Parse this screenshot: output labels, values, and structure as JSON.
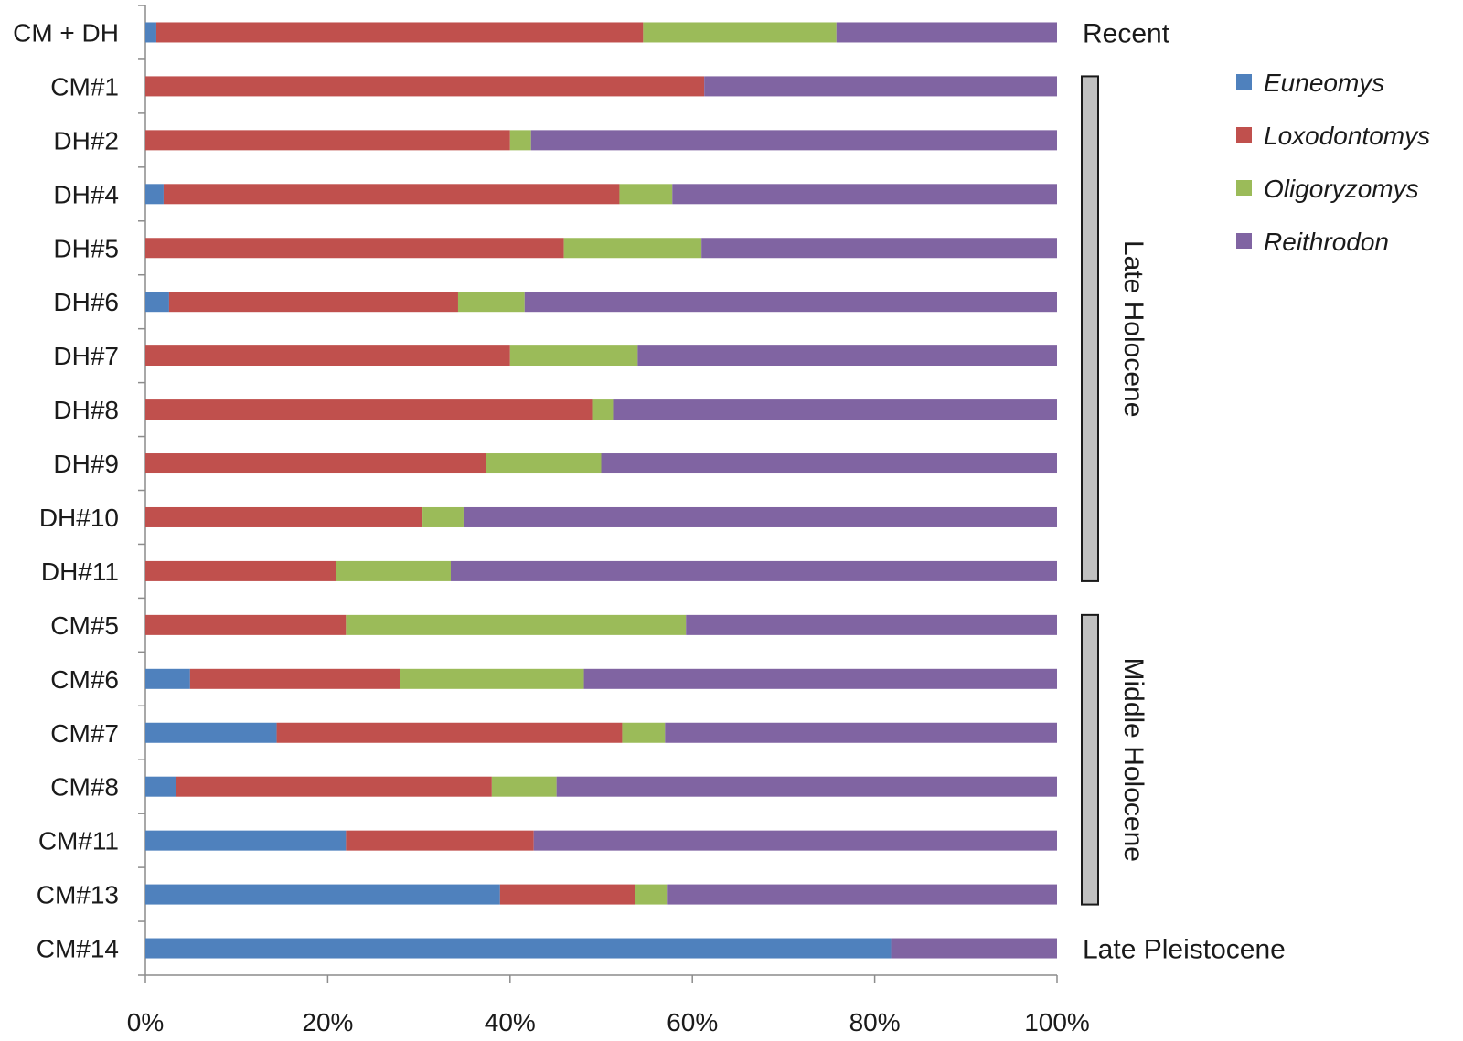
{
  "chart_data": {
    "type": "bar",
    "orientation": "horizontal",
    "stacked_percent": true,
    "categories": [
      "CM + DH",
      "CM#1",
      "DH#2",
      "DH#4",
      "DH#5",
      "DH#6",
      "DH#7",
      "DH#8",
      "DH#9",
      "DH#10",
      "DH#11",
      "CM#5",
      "CM#6",
      "CM#7",
      "CM#8",
      "CM#11",
      "CM#13",
      "CM#14"
    ],
    "series": [
      {
        "name": "Euneomys",
        "color": "#4f81bd",
        "values": [
          1.2,
          0,
          0,
          2.0,
          0,
          2.6,
          0,
          0,
          0,
          0,
          0,
          0,
          4.9,
          14.4,
          3.4,
          22.0,
          38.9,
          81.8
        ]
      },
      {
        "name": "Loxodontomys",
        "color": "#c0504d",
        "values": [
          53.4,
          61.3,
          40.0,
          50.0,
          45.9,
          31.7,
          40.0,
          49.0,
          37.4,
          30.4,
          20.9,
          22.0,
          23.0,
          37.9,
          34.6,
          20.6,
          14.8,
          0
        ]
      },
      {
        "name": "Oligoryzomys",
        "color": "#9bbb59",
        "values": [
          21.2,
          0,
          2.3,
          5.8,
          15.1,
          7.3,
          14.0,
          2.3,
          12.6,
          4.5,
          12.6,
          37.3,
          20.2,
          4.7,
          7.1,
          0,
          3.6,
          0
        ]
      },
      {
        "name": "Reithrodon",
        "color": "#8064a2",
        "values": [
          24.2,
          38.7,
          57.7,
          42.2,
          39.0,
          58.4,
          46.0,
          48.7,
          50.0,
          65.1,
          66.5,
          40.7,
          51.9,
          43.0,
          54.9,
          57.4,
          42.7,
          18.2
        ]
      }
    ],
    "xlim": [
      0,
      100
    ],
    "x_ticks": [
      "0%",
      "20%",
      "40%",
      "60%",
      "80%",
      "100%"
    ],
    "grid": false,
    "legend_position": "right",
    "period_labels": [
      {
        "label": "Recent",
        "rows": [
          "CM + DH"
        ],
        "style": "text"
      },
      {
        "label": "Late Holocene",
        "rows": [
          "CM#1",
          "DH#11"
        ],
        "style": "bracket"
      },
      {
        "label": "Middle Holocene",
        "rows": [
          "CM#5",
          "CM#13"
        ],
        "style": "bracket"
      },
      {
        "label": "Late Pleistocene",
        "rows": [
          "CM#14"
        ],
        "style": "text"
      }
    ]
  }
}
